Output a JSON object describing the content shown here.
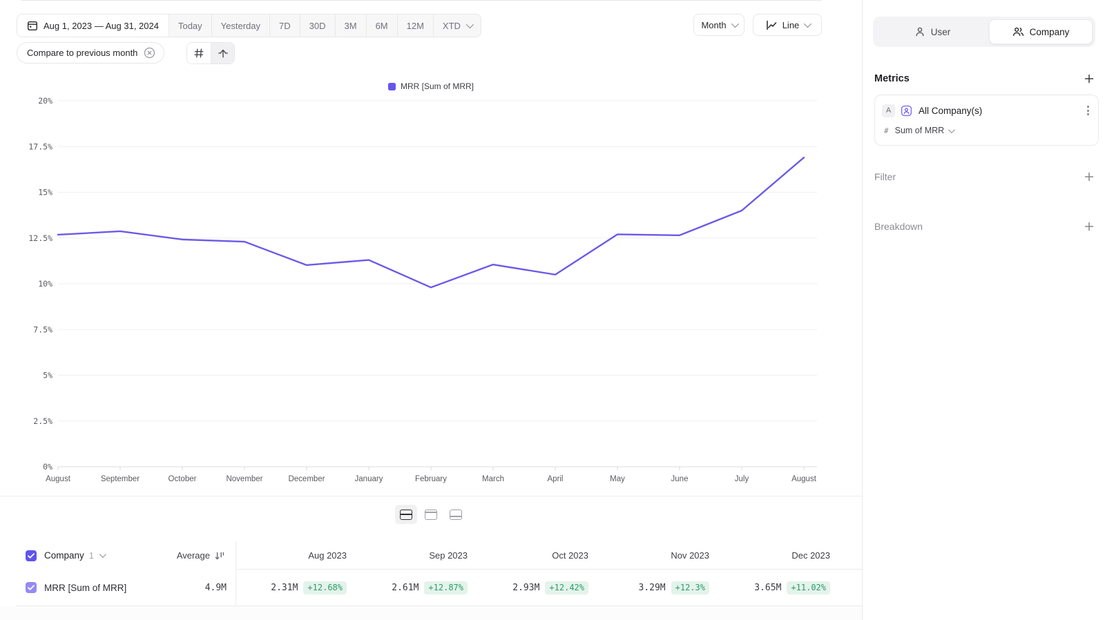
{
  "toolbar": {
    "date_range": "Aug 1, 2023 — Aug 31, 2024",
    "presets": [
      "Today",
      "Yesterday",
      "7D",
      "30D",
      "3M",
      "6M",
      "12M"
    ],
    "xtd": "XTD",
    "granularity": "Month",
    "chart_type": "Line",
    "compare_chip": "Compare to previous month"
  },
  "sidebar": {
    "tabs": {
      "user": "User",
      "company": "Company",
      "active": "Company"
    },
    "metrics_title": "Metrics",
    "metric_card": {
      "badge": "A",
      "name": "All Company(s)",
      "metric": "Sum of MRR"
    },
    "filter_title": "Filter",
    "breakdown_title": "Breakdown"
  },
  "chart_data": {
    "type": "line",
    "legend_label": "MRR [Sum of MRR]",
    "legend_position": "top",
    "categories": [
      "August",
      "September",
      "October",
      "November",
      "December",
      "January",
      "February",
      "March",
      "April",
      "May",
      "June",
      "July",
      "August"
    ],
    "series": [
      {
        "name": "MRR [Sum of MRR]",
        "values": [
          12.68,
          12.87,
          12.42,
          12.3,
          11.02,
          11.3,
          9.8,
          11.05,
          10.5,
          12.7,
          12.65,
          14.0,
          16.9
        ]
      }
    ],
    "ylim": [
      0,
      20
    ],
    "ytick_labels": [
      "0%",
      "2.5%",
      "5%",
      "7.5%",
      "10%",
      "12.5%",
      "15%",
      "17.5%",
      "20%"
    ],
    "grid": true,
    "line_color": "#6b5ae8"
  },
  "table": {
    "group_label": "Company",
    "group_count": "1",
    "average_label": "Average",
    "columns": [
      "Aug 2023",
      "Sep 2023",
      "Oct 2023",
      "Nov 2023",
      "Dec 2023"
    ],
    "rows": [
      {
        "label": "MRR [Sum of MRR]",
        "average": "4.9M",
        "cells": [
          {
            "value": "2.31M",
            "delta": "+12.68%"
          },
          {
            "value": "2.61M",
            "delta": "+12.87%"
          },
          {
            "value": "2.93M",
            "delta": "+12.42%"
          },
          {
            "value": "3.29M",
            "delta": "+12.3%"
          },
          {
            "value": "3.65M",
            "delta": "+11.02%"
          }
        ]
      }
    ]
  },
  "colors": {
    "accent": "#6556ee",
    "line": "#6b5ae8",
    "positive_bg": "#e4f3eb",
    "positive_text": "#2a9d68"
  }
}
